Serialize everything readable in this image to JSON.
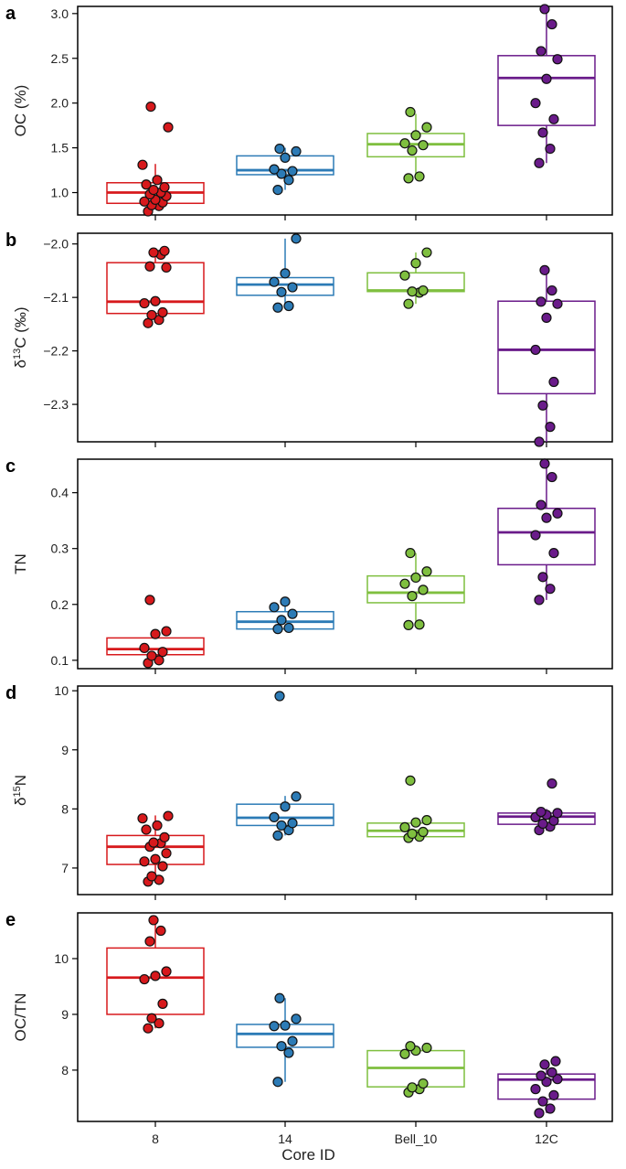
{
  "chart_data": [
    {
      "type": "box",
      "panel_label": "a",
      "title": "",
      "xlabel": "",
      "ylabel": "OC (%)",
      "categories": [
        "8",
        "14",
        "Bell_10",
        "12C"
      ],
      "ylim": [
        0.75,
        3.08
      ],
      "yticks": [
        1.0,
        1.5,
        2.0,
        2.5,
        3.0
      ],
      "ytick_labels": [
        "1.0",
        "1.5",
        "2.0",
        "2.5",
        "3.0"
      ],
      "boxes": [
        {
          "q1": 0.88,
          "median": 1.0,
          "q3": 1.11,
          "whisker_low": 0.85,
          "whisker_high": 1.32,
          "points": [
            0.79,
            0.85,
            0.86,
            0.89,
            0.9,
            0.92,
            0.96,
            0.98,
            1.0,
            1.03,
            1.06,
            1.09,
            1.14,
            1.31,
            1.73,
            1.96
          ]
        },
        {
          "q1": 1.2,
          "median": 1.25,
          "q3": 1.41,
          "whisker_low": 1.03,
          "whisker_high": 1.5,
          "points": [
            1.03,
            1.14,
            1.21,
            1.24,
            1.26,
            1.39,
            1.46,
            1.49
          ]
        },
        {
          "q1": 1.4,
          "median": 1.54,
          "q3": 1.66,
          "whisker_low": 1.17,
          "whisker_high": 1.88,
          "points": [
            1.16,
            1.18,
            1.47,
            1.53,
            1.55,
            1.64,
            1.73,
            1.9
          ]
        },
        {
          "q1": 1.75,
          "median": 2.28,
          "q3": 2.53,
          "whisker_low": 1.33,
          "whisker_high": 3.05,
          "points": [
            1.33,
            1.49,
            1.67,
            1.82,
            2.0,
            2.27,
            2.49,
            2.58,
            2.88,
            3.05
          ]
        }
      ]
    },
    {
      "type": "box",
      "panel_label": "b",
      "title": "",
      "xlabel": "",
      "ylabel": "δ13C (‰)",
      "ylabel_main": "δ",
      "ylabel_sup": "13",
      "ylabel_tail": "C (‰)",
      "categories": [
        "8",
        "14",
        "Bell_10",
        "12C"
      ],
      "ylim": [
        -2.37,
        -1.98
      ],
      "yticks": [
        -2.3,
        -2.2,
        -2.1,
        -2.0
      ],
      "ytick_labels": [
        "−2.3",
        "−2.2",
        "−2.1",
        "−2.0"
      ],
      "boxes": [
        {
          "q1": -2.13,
          "median": -2.108,
          "q3": -2.035,
          "whisker_low": -2.148,
          "whisker_high": -2.012,
          "points": [
            -2.148,
            -2.142,
            -2.133,
            -2.128,
            -2.111,
            -2.107,
            -2.044,
            -2.042,
            -2.02,
            -2.016,
            -2.013
          ]
        },
        {
          "q1": -2.096,
          "median": -2.076,
          "q3": -2.063,
          "whisker_low": -2.12,
          "whisker_high": -1.99,
          "points": [
            -2.119,
            -2.116,
            -2.09,
            -2.081,
            -2.071,
            -2.055,
            -1.99
          ]
        },
        {
          "q1": -2.089,
          "median": -2.087,
          "q3": -2.054,
          "whisker_low": -2.112,
          "whisker_high": -2.016,
          "points": [
            -2.112,
            -2.091,
            -2.089,
            -2.087,
            -2.059,
            -2.036,
            -2.016
          ]
        },
        {
          "q1": -2.28,
          "median": -2.198,
          "q3": -2.107,
          "whisker_low": -2.37,
          "whisker_high": -2.049,
          "points": [
            -2.37,
            -2.342,
            -2.302,
            -2.258,
            -2.198,
            -2.138,
            -2.112,
            -2.108,
            -2.087,
            -2.049
          ]
        }
      ]
    },
    {
      "type": "box",
      "panel_label": "c",
      "title": "",
      "xlabel": "",
      "ylabel": "TN",
      "categories": [
        "8",
        "14",
        "Bell_10",
        "12C"
      ],
      "ylim": [
        0.085,
        0.46
      ],
      "yticks": [
        0.1,
        0.2,
        0.3,
        0.4
      ],
      "ytick_labels": [
        "0.1",
        "0.2",
        "0.3",
        "0.4"
      ],
      "boxes": [
        {
          "q1": 0.11,
          "median": 0.12,
          "q3": 0.14,
          "whisker_low": 0.095,
          "whisker_high": 0.151,
          "points": [
            0.095,
            0.1,
            0.108,
            0.115,
            0.122,
            0.147,
            0.152,
            0.208
          ]
        },
        {
          "q1": 0.156,
          "median": 0.169,
          "q3": 0.187,
          "whisker_low": 0.156,
          "whisker_high": 0.204,
          "points": [
            0.156,
            0.158,
            0.172,
            0.183,
            0.195,
            0.205
          ]
        },
        {
          "q1": 0.203,
          "median": 0.221,
          "q3": 0.251,
          "whisker_low": 0.163,
          "whisker_high": 0.292,
          "points": [
            0.163,
            0.164,
            0.215,
            0.226,
            0.237,
            0.248,
            0.259,
            0.292
          ]
        },
        {
          "q1": 0.271,
          "median": 0.329,
          "q3": 0.372,
          "whisker_low": 0.208,
          "whisker_high": 0.452,
          "points": [
            0.208,
            0.228,
            0.249,
            0.292,
            0.324,
            0.355,
            0.363,
            0.378,
            0.428,
            0.452
          ]
        }
      ]
    },
    {
      "type": "box",
      "panel_label": "d",
      "title": "",
      "xlabel": "",
      "ylabel": "δ15N",
      "ylabel_main": "δ",
      "ylabel_sup": "15",
      "ylabel_tail": "N",
      "categories": [
        "8",
        "14",
        "Bell_10",
        "12C"
      ],
      "ylim": [
        6.55,
        10.08
      ],
      "yticks": [
        7,
        8,
        9,
        10
      ],
      "ytick_labels": [
        "7",
        "8",
        "9",
        "10"
      ],
      "boxes": [
        {
          "q1": 7.06,
          "median": 7.36,
          "q3": 7.55,
          "whisker_low": 6.8,
          "whisker_high": 7.89,
          "points": [
            6.77,
            6.8,
            6.86,
            7.03,
            7.11,
            7.15,
            7.25,
            7.36,
            7.42,
            7.43,
            7.52,
            7.65,
            7.72,
            7.84,
            7.88
          ]
        },
        {
          "q1": 7.72,
          "median": 7.85,
          "q3": 8.08,
          "whisker_low": 7.55,
          "whisker_high": 8.22,
          "points": [
            7.55,
            7.64,
            7.72,
            7.76,
            7.86,
            8.04,
            8.21,
            9.91
          ]
        },
        {
          "q1": 7.53,
          "median": 7.63,
          "q3": 7.76,
          "whisker_low": 7.5,
          "whisker_high": 7.8,
          "points": [
            7.51,
            7.53,
            7.58,
            7.61,
            7.69,
            7.77,
            7.81,
            8.48
          ]
        },
        {
          "q1": 7.74,
          "median": 7.87,
          "q3": 7.93,
          "whisker_low": 7.63,
          "whisker_high": 8.0,
          "points": [
            7.64,
            7.7,
            7.75,
            7.8,
            7.86,
            7.9,
            7.93,
            7.95,
            8.43
          ]
        }
      ]
    },
    {
      "type": "box",
      "panel_label": "e",
      "title": "",
      "xlabel": "Core ID",
      "ylabel": "OC/TN",
      "categories": [
        "8",
        "14",
        "Bell_10",
        "12C"
      ],
      "ylim": [
        7.08,
        10.82
      ],
      "yticks": [
        8,
        9,
        10
      ],
      "ytick_labels": [
        "8",
        "9",
        "10"
      ],
      "boxes": [
        {
          "q1": 9.0,
          "median": 9.66,
          "q3": 10.19,
          "whisker_low": 8.75,
          "whisker_high": 10.69,
          "points": [
            8.75,
            8.84,
            8.93,
            9.19,
            9.63,
            9.69,
            9.77,
            10.31,
            10.5,
            10.69
          ]
        },
        {
          "q1": 8.41,
          "median": 8.65,
          "q3": 8.82,
          "whisker_low": 7.79,
          "whisker_high": 9.29,
          "points": [
            7.79,
            8.31,
            8.43,
            8.52,
            8.79,
            8.8,
            8.92,
            9.29
          ]
        },
        {
          "q1": 7.7,
          "median": 8.04,
          "q3": 8.35,
          "whisker_low": 7.6,
          "whisker_high": 8.43,
          "points": [
            7.6,
            7.66,
            7.69,
            7.76,
            8.29,
            8.35,
            8.4,
            8.43
          ]
        },
        {
          "q1": 7.48,
          "median": 7.83,
          "q3": 7.93,
          "whisker_low": 7.23,
          "whisker_high": 8.16,
          "points": [
            7.23,
            7.31,
            7.44,
            7.55,
            7.66,
            7.79,
            7.84,
            7.9,
            7.96,
            8.1,
            8.16
          ]
        }
      ]
    }
  ],
  "colors": {
    "series": [
      "#d7191c",
      "#2c7bb6",
      "#7fbf3f",
      "#6a1b8a"
    ],
    "axis": "#000000"
  }
}
